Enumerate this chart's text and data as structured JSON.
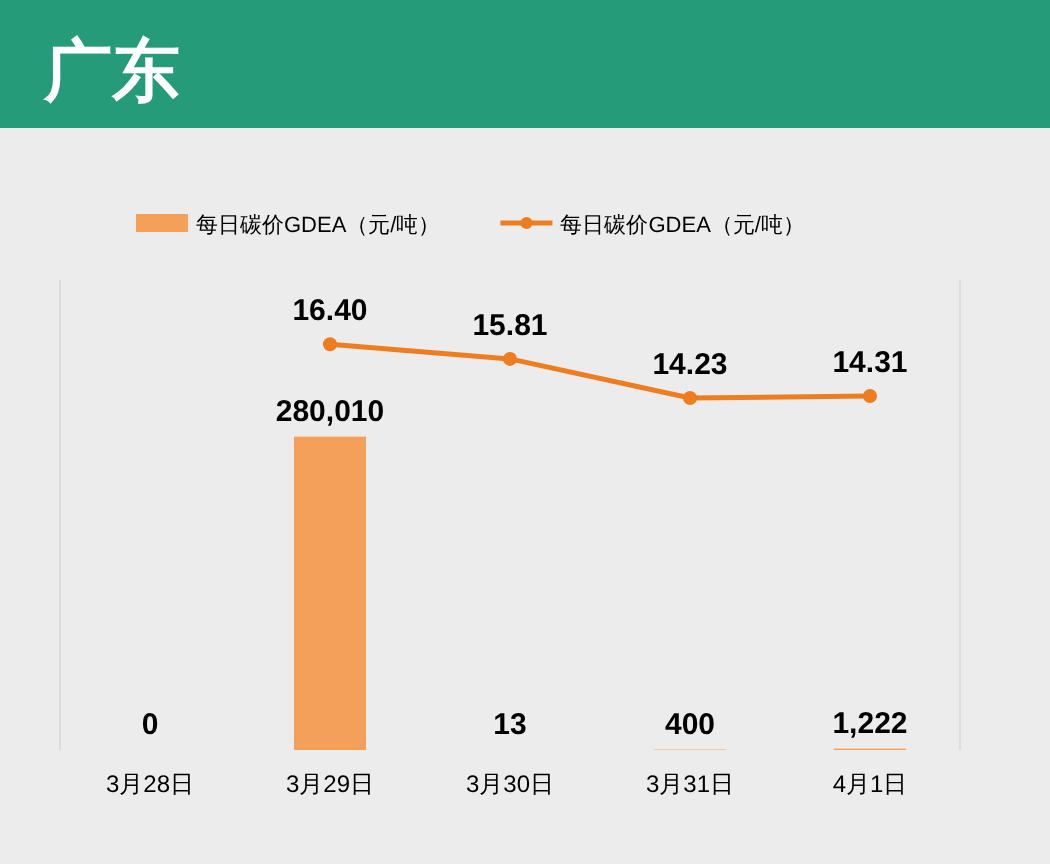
{
  "chart_data": {
    "type": "bar",
    "title": "广东",
    "categories": [
      "3月28日",
      "3月29日",
      "3月30日",
      "3月31日",
      "4月1日"
    ],
    "series": [
      {
        "name": "每日碳价GDEA（元/吨）",
        "color": "#f4a05a",
        "values": [
          0,
          280010,
          13,
          400,
          1222
        ],
        "value_labels": [
          "0",
          "280,010",
          "13",
          "400",
          "1,222"
        ]
      },
      {
        "name": "每日碳价GDEA（元/吨）",
        "type": "line",
        "axis": "y2",
        "color": "#ed7d1f",
        "marker": "circle",
        "values": [
          null,
          16.4,
          15.81,
          14.23,
          14.31
        ],
        "value_labels": [
          null,
          "16.40",
          "15.81",
          "14.23",
          "14.31"
        ]
      }
    ],
    "ylim": [
      0,
      420000
    ],
    "y2lim": [
      0,
      19
    ],
    "tick_labels": "x",
    "legend": "top"
  }
}
